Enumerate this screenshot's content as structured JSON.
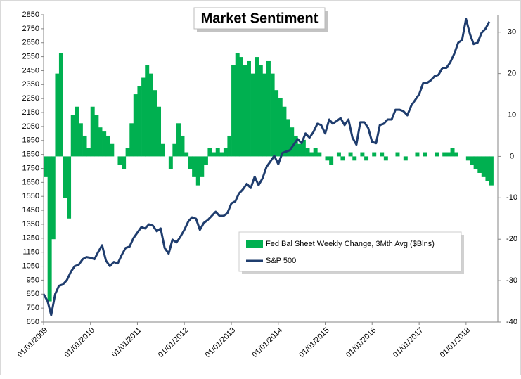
{
  "chart_data": {
    "type": "bar-line",
    "title": "Market Sentiment",
    "x": [
      "2009-01-01",
      "2009-02-01",
      "2009-03-01",
      "2009-04-01",
      "2009-05-01",
      "2009-06-01",
      "2009-07-01",
      "2009-08-01",
      "2009-09-01",
      "2009-10-01",
      "2009-11-01",
      "2009-12-01",
      "2010-01-01",
      "2010-02-01",
      "2010-03-01",
      "2010-04-01",
      "2010-05-01",
      "2010-06-01",
      "2010-07-01",
      "2010-08-01",
      "2010-09-01",
      "2010-10-01",
      "2010-11-01",
      "2010-12-01",
      "2011-01-01",
      "2011-02-01",
      "2011-03-01",
      "2011-04-01",
      "2011-05-01",
      "2011-06-01",
      "2011-07-01",
      "2011-08-01",
      "2011-09-01",
      "2011-10-01",
      "2011-11-01",
      "2011-12-01",
      "2012-01-01",
      "2012-02-01",
      "2012-03-01",
      "2012-04-01",
      "2012-05-01",
      "2012-06-01",
      "2012-07-01",
      "2012-08-01",
      "2012-09-01",
      "2012-10-01",
      "2012-11-01",
      "2012-12-01",
      "2013-01-01",
      "2013-02-01",
      "2013-03-01",
      "2013-04-01",
      "2013-05-01",
      "2013-06-01",
      "2013-07-01",
      "2013-08-01",
      "2013-09-01",
      "2013-10-01",
      "2013-11-01",
      "2013-12-01",
      "2014-01-01",
      "2014-02-01",
      "2014-03-01",
      "2014-04-01",
      "2014-05-01",
      "2014-06-01",
      "2014-07-01",
      "2014-08-01",
      "2014-09-01",
      "2014-10-01",
      "2014-11-01",
      "2014-12-01",
      "2015-01-01",
      "2015-02-01",
      "2015-03-01",
      "2015-04-01",
      "2015-05-01",
      "2015-06-01",
      "2015-07-01",
      "2015-08-01",
      "2015-09-01",
      "2015-10-01",
      "2015-11-01",
      "2015-12-01",
      "2016-01-01",
      "2016-02-01",
      "2016-03-01",
      "2016-04-01",
      "2016-05-01",
      "2016-06-01",
      "2016-07-01",
      "2016-08-01",
      "2016-09-01",
      "2016-10-01",
      "2016-11-01",
      "2016-12-01",
      "2017-01-01",
      "2017-02-01",
      "2017-03-01",
      "2017-04-01",
      "2017-05-01",
      "2017-06-01",
      "2017-07-01",
      "2017-08-01",
      "2017-09-01",
      "2017-10-01",
      "2017-11-01",
      "2017-12-01",
      "2018-01-01",
      "2018-02-01",
      "2018-03-01",
      "2018-04-01",
      "2018-05-01",
      "2018-06-01",
      "2018-07-01"
    ],
    "series": [
      {
        "name": "Fed Bal Sheet Weekly Change, 3Mth Avg ($Blns)",
        "kind": "bar",
        "axis": "y2",
        "color": "#00b050",
        "values": [
          -5,
          -35,
          -20,
          20,
          25,
          -10,
          -15,
          10,
          12,
          8,
          5,
          2,
          12,
          10,
          7,
          6,
          5,
          3,
          0,
          -2,
          -3,
          2,
          8,
          15,
          17,
          19,
          22,
          20,
          16,
          12,
          3,
          0,
          -3,
          3,
          8,
          5,
          1,
          -3,
          -5,
          -7,
          -5,
          -2,
          2,
          1,
          2,
          1,
          2,
          5,
          22,
          25,
          24,
          22,
          23,
          20,
          24,
          22,
          20,
          23,
          20,
          16,
          14,
          12,
          9,
          7,
          5,
          3,
          4,
          2,
          1,
          2,
          1,
          0,
          -1,
          -2,
          0,
          1,
          -1,
          0,
          1,
          -1,
          0,
          1,
          -1,
          0,
          1,
          0,
          1,
          -1,
          0,
          0,
          1,
          0,
          -1,
          0,
          0,
          1,
          0,
          1,
          0,
          0,
          1,
          0,
          1,
          1,
          2,
          1,
          0,
          0,
          -1,
          -2,
          -3,
          -4,
          -5,
          -6,
          -7
        ]
      },
      {
        "name": "S&P 500",
        "kind": "line",
        "color": "#1f3d6e",
        "values": [
          850,
          800,
          700,
          850,
          910,
          920,
          950,
          1010,
          1050,
          1060,
          1100,
          1115,
          1110,
          1100,
          1150,
          1200,
          1090,
          1050,
          1080,
          1070,
          1130,
          1180,
          1190,
          1250,
          1290,
          1330,
          1320,
          1350,
          1340,
          1300,
          1320,
          1180,
          1140,
          1240,
          1220,
          1260,
          1310,
          1370,
          1400,
          1390,
          1310,
          1360,
          1380,
          1410,
          1440,
          1410,
          1410,
          1430,
          1500,
          1515,
          1570,
          1600,
          1640,
          1610,
          1690,
          1630,
          1680,
          1760,
          1800,
          1840,
          1780,
          1860,
          1870,
          1880,
          1920,
          1960,
          1930,
          2000,
          1970,
          2010,
          2070,
          2060,
          2000,
          2100,
          2070,
          2090,
          2110,
          2060,
          2100,
          1970,
          1920,
          2080,
          2080,
          2040,
          1940,
          1930,
          2060,
          2070,
          2100,
          2100,
          2170,
          2170,
          2160,
          2130,
          2200,
          2240,
          2280,
          2360,
          2360,
          2380,
          2410,
          2420,
          2470,
          2470,
          2510,
          2570,
          2650,
          2670,
          2820,
          2710,
          2640,
          2650,
          2720,
          2750,
          2800
        ]
      }
    ],
    "xlim": [
      "2009-01-01",
      "2018-09-05"
    ],
    "xticks": [
      {
        "value": "2009-01-01",
        "label": "01/01/2009"
      },
      {
        "value": "2010-01-01",
        "label": "01/01/2010"
      },
      {
        "value": "2011-01-01",
        "label": "01/01/2011"
      },
      {
        "value": "2012-01-01",
        "label": "01/01/2012"
      },
      {
        "value": "2013-01-01",
        "label": "01/01/2013"
      },
      {
        "value": "2014-01-01",
        "label": "01/01/2014"
      },
      {
        "value": "2015-01-01",
        "label": "01/01/2015"
      },
      {
        "value": "2016-01-01",
        "label": "01/01/2016"
      },
      {
        "value": "2017-01-01",
        "label": "01/01/2017"
      },
      {
        "value": "2018-01-01",
        "label": "01/01/2018"
      }
    ],
    "ylim": [
      650,
      2850
    ],
    "yticks": [
      650,
      750,
      850,
      950,
      1050,
      1150,
      1250,
      1350,
      1450,
      1550,
      1650,
      1750,
      1850,
      1950,
      2050,
      2150,
      2250,
      2350,
      2450,
      2550,
      2650,
      2750,
      2850
    ],
    "y2lim": [
      -40,
      34.2
    ],
    "y2ticks": [
      -40,
      -30,
      -20,
      -10,
      0,
      10,
      20,
      30
    ]
  }
}
